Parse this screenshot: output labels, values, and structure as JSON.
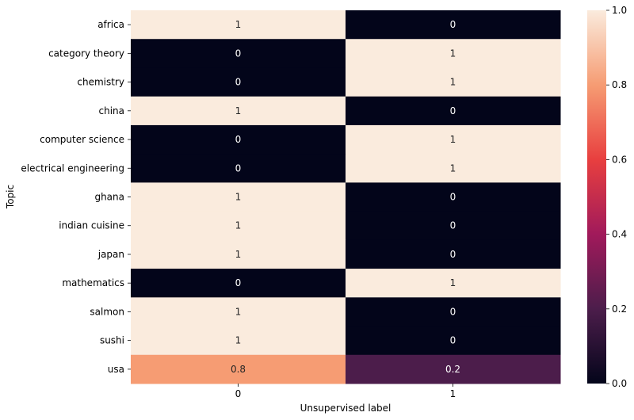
{
  "chart_data": {
    "type": "heatmap",
    "xlabel": "Unsupervised label",
    "ylabel": "Topic",
    "columns": [
      "0",
      "1"
    ],
    "rows": [
      "africa",
      "category theory",
      "chemistry",
      "china",
      "computer science",
      "electrical engineering",
      "ghana",
      "indian cuisine",
      "japan",
      "mathematics",
      "salmon",
      "sushi",
      "usa"
    ],
    "values": [
      [
        1,
        0
      ],
      [
        0,
        1
      ],
      [
        0,
        1
      ],
      [
        1,
        0
      ],
      [
        0,
        1
      ],
      [
        0,
        1
      ],
      [
        1,
        0
      ],
      [
        1,
        0
      ],
      [
        1,
        0
      ],
      [
        0,
        1
      ],
      [
        1,
        0
      ],
      [
        1,
        0
      ],
      [
        0.8,
        0.2
      ]
    ],
    "cell_labels": [
      [
        "1",
        "0"
      ],
      [
        "0",
        "1"
      ],
      [
        "0",
        "1"
      ],
      [
        "1",
        "0"
      ],
      [
        "0",
        "1"
      ],
      [
        "0",
        "1"
      ],
      [
        "1",
        "0"
      ],
      [
        "1",
        "0"
      ],
      [
        "1",
        "0"
      ],
      [
        "0",
        "1"
      ],
      [
        "1",
        "0"
      ],
      [
        "1",
        "0"
      ],
      [
        "0.8",
        "0.2"
      ]
    ],
    "colorbar": {
      "range": [
        0,
        1
      ],
      "ticks": [
        "0.0",
        "0.2",
        "0.4",
        "0.6",
        "0.8",
        "1.0"
      ],
      "colormap": "rocket",
      "stops": [
        "#03051a",
        "#4c1d4b",
        "#a11a5b",
        "#e83f3f",
        "#f69c73",
        "#faebdd"
      ]
    }
  }
}
